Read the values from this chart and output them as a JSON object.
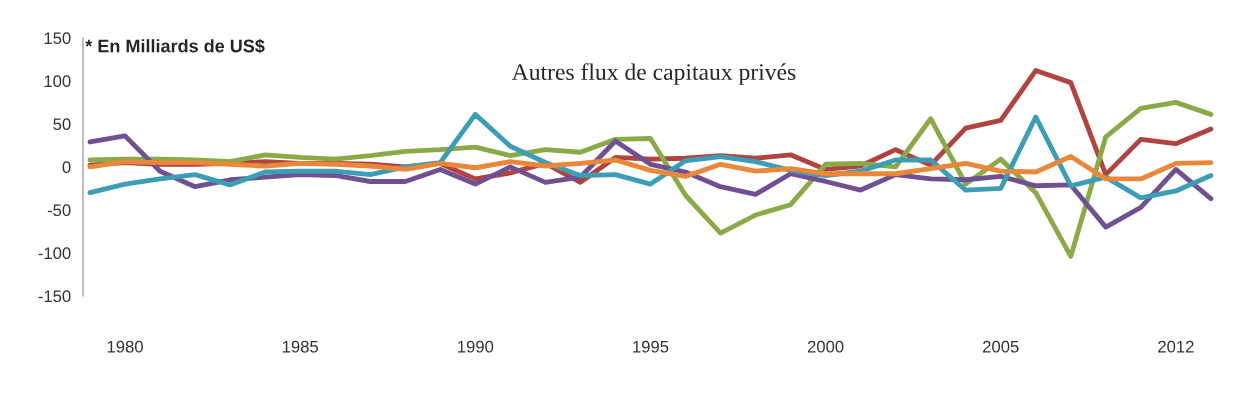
{
  "chart_data": {
    "type": "line",
    "title": "Autres flux de capitaux privés",
    "annotations": [
      "* En Milliards de US$"
    ],
    "categories": [
      null,
      "1980",
      null,
      null,
      null,
      null,
      "1985",
      null,
      null,
      null,
      null,
      "1990",
      null,
      null,
      null,
      null,
      "1995",
      null,
      null,
      null,
      null,
      "2000",
      null,
      null,
      null,
      null,
      "2005",
      null,
      null,
      null,
      null,
      "2012",
      null
    ],
    "series": [
      {
        "color": "#b04440",
        "values": [
          2,
          5,
          3,
          3,
          4,
          6,
          4,
          4,
          3,
          0,
          4,
          -14,
          -7,
          4,
          -18,
          11,
          9,
          10,
          13,
          10,
          14,
          -3,
          1,
          20,
          2,
          45,
          54,
          112,
          98,
          -9,
          32,
          27,
          44
        ]
      },
      {
        "color": "#8aaa48",
        "values": [
          8,
          9,
          9,
          8,
          6,
          14,
          11,
          9,
          13,
          18,
          20,
          23,
          13,
          20,
          17,
          32,
          33,
          -33,
          -77,
          -56,
          -44,
          3,
          4,
          0,
          56,
          -20,
          9,
          -30,
          -104,
          35,
          68,
          75,
          61
        ]
      },
      {
        "color": "#6f5192",
        "values": [
          29,
          36,
          -5,
          -23,
          -15,
          -12,
          -9,
          -10,
          -17,
          -17,
          -3,
          -20,
          0,
          -18,
          -12,
          30,
          3,
          -6,
          -23,
          -32,
          -8,
          -17,
          -27,
          -9,
          -14,
          -15,
          -11,
          -22,
          -21,
          -70,
          -47,
          -3,
          -37
        ]
      },
      {
        "color": "#3c9db5",
        "values": [
          -30,
          -20,
          -14,
          -9,
          -21,
          -6,
          -5,
          -5,
          -9,
          0,
          5,
          61,
          24,
          5,
          -10,
          -9,
          -20,
          7,
          12,
          6,
          -4,
          -10,
          -5,
          8,
          8,
          -27,
          -25,
          58,
          -22,
          -12,
          -36,
          -28,
          -10
        ]
      },
      {
        "color": "#e9873a",
        "values": [
          0,
          6,
          5,
          5,
          3,
          1,
          4,
          3,
          1,
          -3,
          4,
          -1,
          6,
          1,
          4,
          8,
          -4,
          -11,
          3,
          -5,
          -2,
          -8,
          -8,
          -8,
          -2,
          4,
          -5,
          -6,
          12,
          -14,
          -14,
          4,
          5
        ]
      }
    ],
    "ylim": [
      -150,
      150
    ],
    "yticks": [
      -150,
      -100,
      -50,
      0,
      50,
      100,
      150
    ],
    "grid": false,
    "marker": "none",
    "line_style": "solid"
  }
}
